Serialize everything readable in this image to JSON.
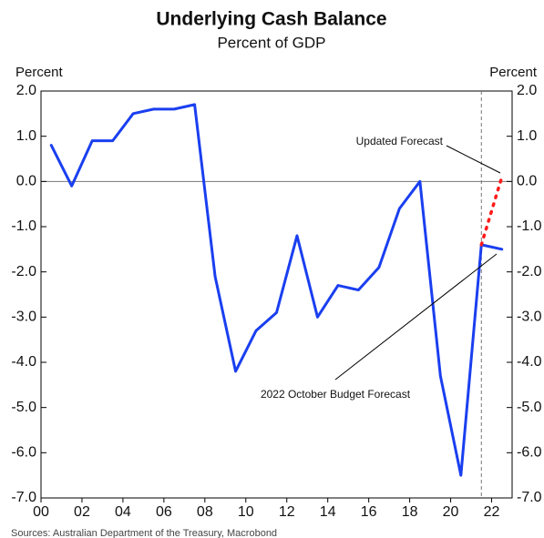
{
  "chart_data": {
    "type": "line",
    "title": "Underlying Cash Balance",
    "subtitle": "Percent of GDP",
    "y_label": "Percent",
    "y2_label": "Percent",
    "source": "Sources: Australian Department of the Treasury, Macrobond",
    "series": [
      {
        "color": "#1a3ff0",
        "x": [
          0.5,
          1.5,
          2.5,
          3.5,
          4.5,
          5.5,
          6.5,
          7.5,
          8.5,
          9.5,
          10.5,
          11.5,
          12.5,
          13.5,
          14.5,
          15.5,
          16.5,
          17.5,
          18.5,
          19.5,
          20.5,
          21.5,
          22.5
        ],
        "values": [
          0.8,
          -0.1,
          0.9,
          0.9,
          1.5,
          1.6,
          1.6,
          1.7,
          -2.1,
          -4.2,
          -3.3,
          -2.9,
          -1.2,
          -3.0,
          -2.3,
          -2.4,
          -1.9,
          -0.6,
          0.0,
          -4.3,
          -6.5,
          -1.4,
          -1.5
        ]
      },
      {
        "color": "#ff1a1a",
        "style": "dotted",
        "x": [
          21.5,
          22.5
        ],
        "values": [
          -1.4,
          0.1
        ]
      }
    ],
    "annotations": [
      "Updated Forecast",
      "2022 October Budget Forecast"
    ],
    "vline": 21.5,
    "xlim": [
      0,
      23
    ],
    "xticks": [
      {
        "value": 0,
        "label": "00"
      },
      {
        "value": 2,
        "label": "02"
      },
      {
        "value": 4,
        "label": "04"
      },
      {
        "value": 6,
        "label": "06"
      },
      {
        "value": 8,
        "label": "08"
      },
      10,
      12,
      14,
      16,
      18,
      20,
      22
    ],
    "ylim": [
      -7,
      2
    ],
    "yticks": [
      {
        "value": 2,
        "label": "2.0"
      },
      {
        "value": 1,
        "label": "1.0"
      },
      {
        "value": 0,
        "label": "0.0"
      },
      {
        "value": -1,
        "label": "-1.0"
      },
      {
        "value": -2,
        "label": "-2.0"
      },
      {
        "value": -3,
        "label": "-3.0"
      },
      {
        "value": -4,
        "label": "-4.0"
      },
      {
        "value": -5,
        "label": "-5.0"
      },
      {
        "value": -6,
        "label": "-6.0"
      },
      {
        "value": -7,
        "label": "-7.0"
      }
    ],
    "y2lim": [
      -7,
      2
    ],
    "y2ticks": [
      {
        "value": 2,
        "label": "2.0"
      },
      {
        "value": 1,
        "label": "1.0"
      },
      {
        "value": 0,
        "label": "0.0"
      },
      {
        "value": -1,
        "label": "-1.0"
      },
      {
        "value": -2,
        "label": "-2.0"
      },
      {
        "value": -3,
        "label": "-3.0"
      },
      {
        "value": -4,
        "label": "-4.0"
      },
      {
        "value": -5,
        "label": "-5.0"
      },
      {
        "value": -6,
        "label": "-6.0"
      },
      {
        "value": -7,
        "label": "-7.0"
      }
    ]
  }
}
